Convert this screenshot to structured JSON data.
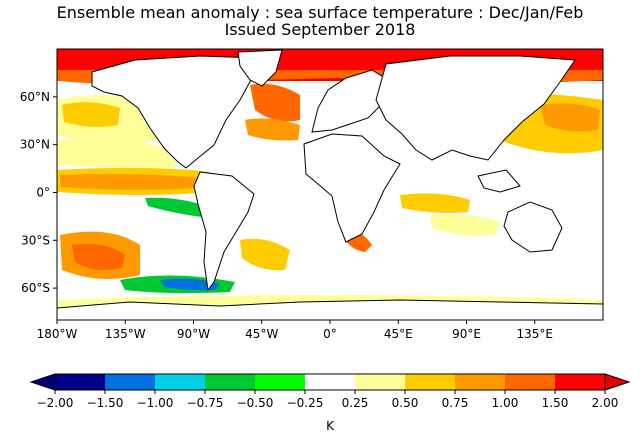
{
  "title_line1": "Ensemble mean anomaly : sea surface temperature : Dec/Jan/Feb",
  "title_line2": "Issued September 2018",
  "map": {
    "projection": "equirectangular",
    "lon_range": [
      -180,
      180
    ],
    "lat_range": [
      -80,
      90
    ],
    "lat_ticks": [
      {
        "value": 60,
        "label": "60°N"
      },
      {
        "value": 30,
        "label": "30°N"
      },
      {
        "value": 0,
        "label": "0°"
      },
      {
        "value": -30,
        "label": "30°S"
      },
      {
        "value": -60,
        "label": "60°S"
      }
    ],
    "lon_ticks": [
      {
        "value": -180,
        "label": "180°W"
      },
      {
        "value": -135,
        "label": "135°W"
      },
      {
        "value": -90,
        "label": "90°W"
      },
      {
        "value": -45,
        "label": "45°W"
      },
      {
        "value": 0,
        "label": "0°"
      },
      {
        "value": 45,
        "label": "45°E"
      },
      {
        "value": 90,
        "label": "90°E"
      },
      {
        "value": 135,
        "label": "135°E"
      }
    ],
    "land_color": "#ffffff"
  },
  "colorbar": {
    "unit_label": "K",
    "boundaries": [
      "−2.00",
      "−1.50",
      "−1.00",
      "−0.75",
      "−0.50",
      "−0.25",
      "0.25",
      "0.50",
      "0.75",
      "1.00",
      "1.50",
      "2.00"
    ],
    "colors": [
      "#00008b",
      "#0070e0",
      "#00d0e8",
      "#00c832",
      "#00ff00",
      "#ffffff",
      "#ffff9a",
      "#ffcc00",
      "#ff9900",
      "#ff6600",
      "#ff0000"
    ],
    "under_color": "#00007a",
    "over_color": "#e00000"
  }
}
